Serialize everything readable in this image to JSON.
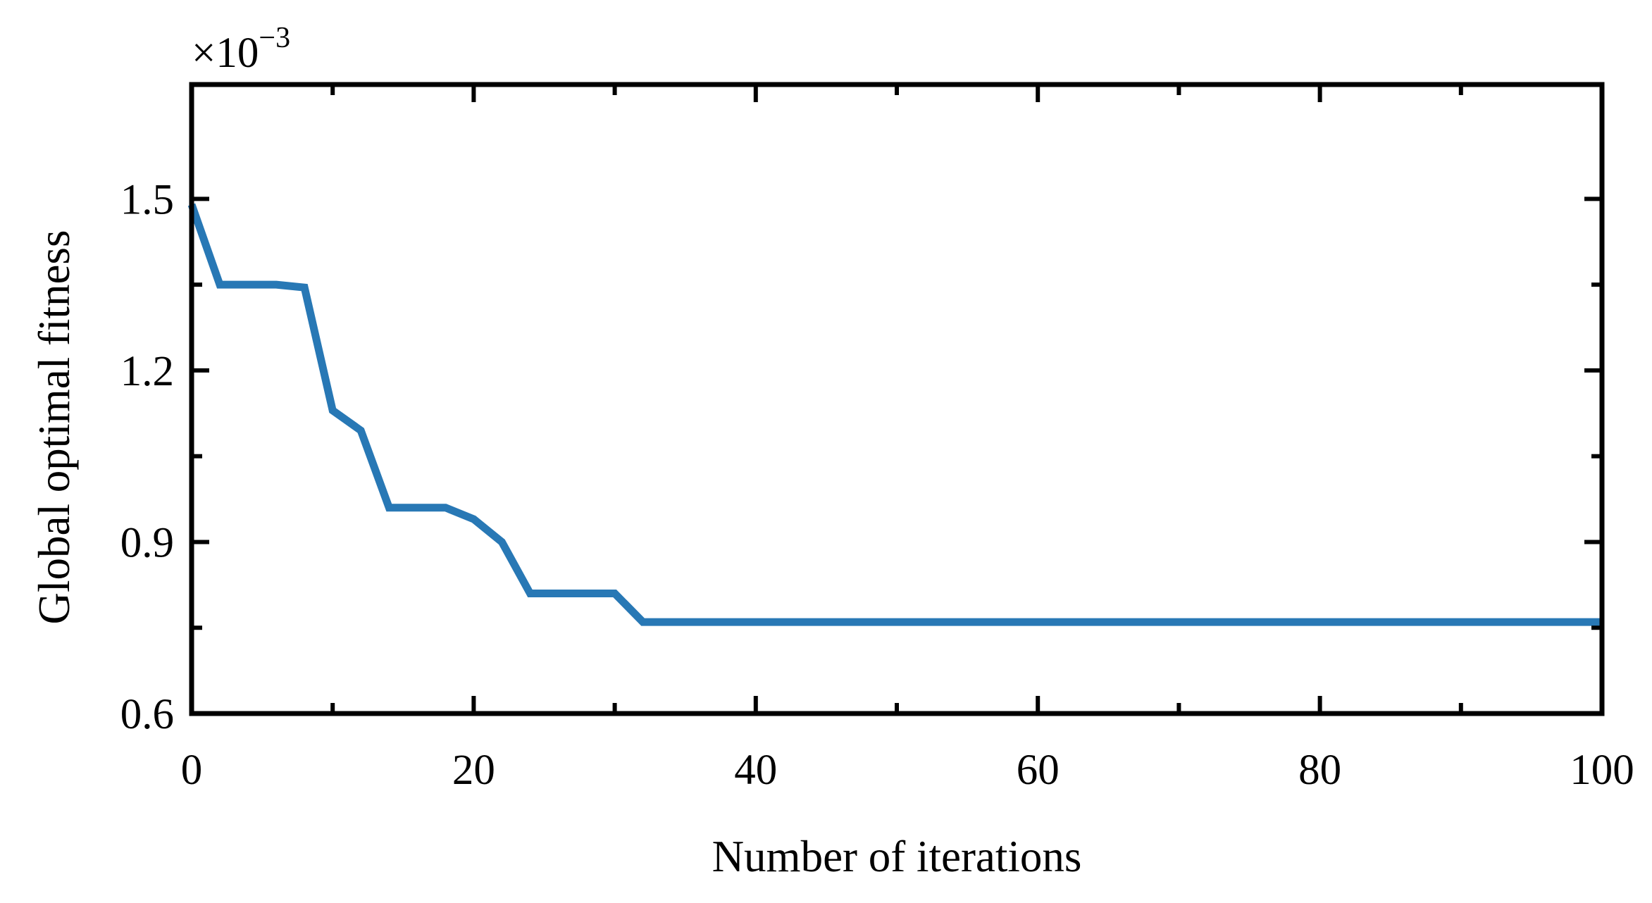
{
  "chart_data": {
    "type": "line",
    "xlabel": "Number of iterations",
    "ylabel": "Global optimal fitness",
    "y_multiplier": {
      "base": "×10",
      "exponent": "−3"
    },
    "xlim": [
      0,
      100
    ],
    "ylim": [
      0.6,
      1.7
    ],
    "x_ticks": [
      0,
      20,
      40,
      60,
      80,
      100
    ],
    "x_tick_labels": [
      "0",
      "20",
      "40",
      "60",
      "80",
      "100"
    ],
    "x_minor_ticks": [
      10,
      30,
      50,
      70,
      90
    ],
    "y_ticks": [
      0.6,
      0.9,
      1.2,
      1.5
    ],
    "y_tick_labels": [
      "0.6",
      "0.9",
      "1.2",
      "1.5"
    ],
    "y_minor_ticks": [
      0.75,
      1.05,
      1.35
    ],
    "grid": false,
    "series": [
      {
        "color": "#2878b5",
        "x": [
          0,
          2,
          4,
          6,
          8,
          10,
          12,
          14,
          16,
          18,
          20,
          22,
          24,
          26,
          28,
          30,
          32,
          34,
          100
        ],
        "y": [
          1.49,
          1.35,
          1.35,
          1.35,
          1.345,
          1.13,
          1.095,
          0.96,
          0.96,
          0.96,
          0.94,
          0.9,
          0.81,
          0.81,
          0.81,
          0.81,
          0.76,
          0.76,
          0.76
        ]
      }
    ]
  }
}
